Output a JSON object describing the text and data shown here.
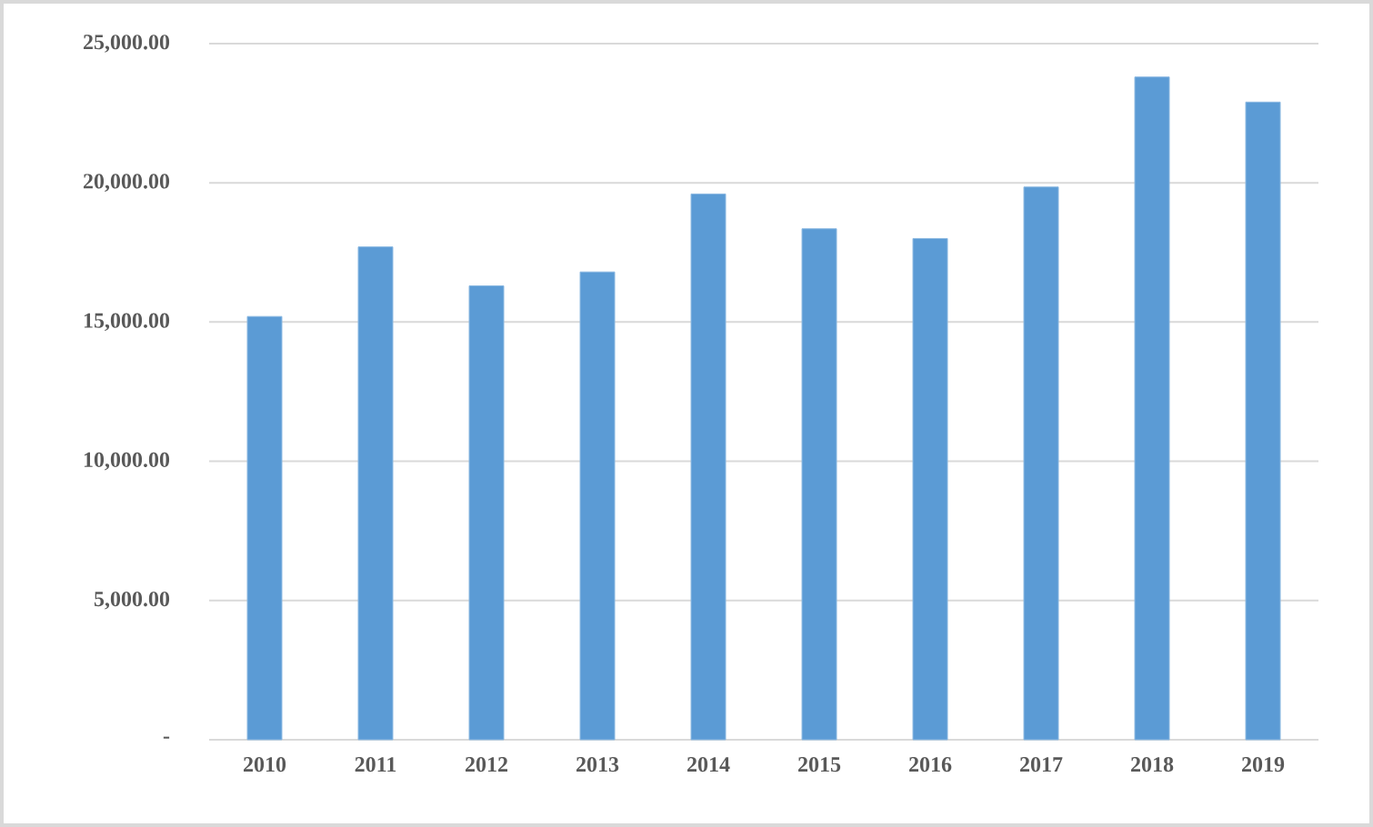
{
  "chart_data": {
    "type": "bar",
    "categories": [
      "2010",
      "2011",
      "2012",
      "2013",
      "2014",
      "2015",
      "2016",
      "2017",
      "2018",
      "2019"
    ],
    "values": [
      15200,
      17700,
      16300,
      16800,
      19600,
      18350,
      18000,
      19850,
      23800,
      22900
    ],
    "color": "#5b9bd5",
    "ylim": [
      0,
      25000
    ],
    "yticks": [
      {
        "value": 0,
        "label": "-"
      },
      {
        "value": 5000,
        "label": "5,000.00"
      },
      {
        "value": 10000,
        "label": "10,000.00"
      },
      {
        "value": 15000,
        "label": "15,000.00"
      },
      {
        "value": 20000,
        "label": "20,000.00"
      },
      {
        "value": 25000,
        "label": "25,000.00"
      }
    ],
    "grid": "y"
  }
}
